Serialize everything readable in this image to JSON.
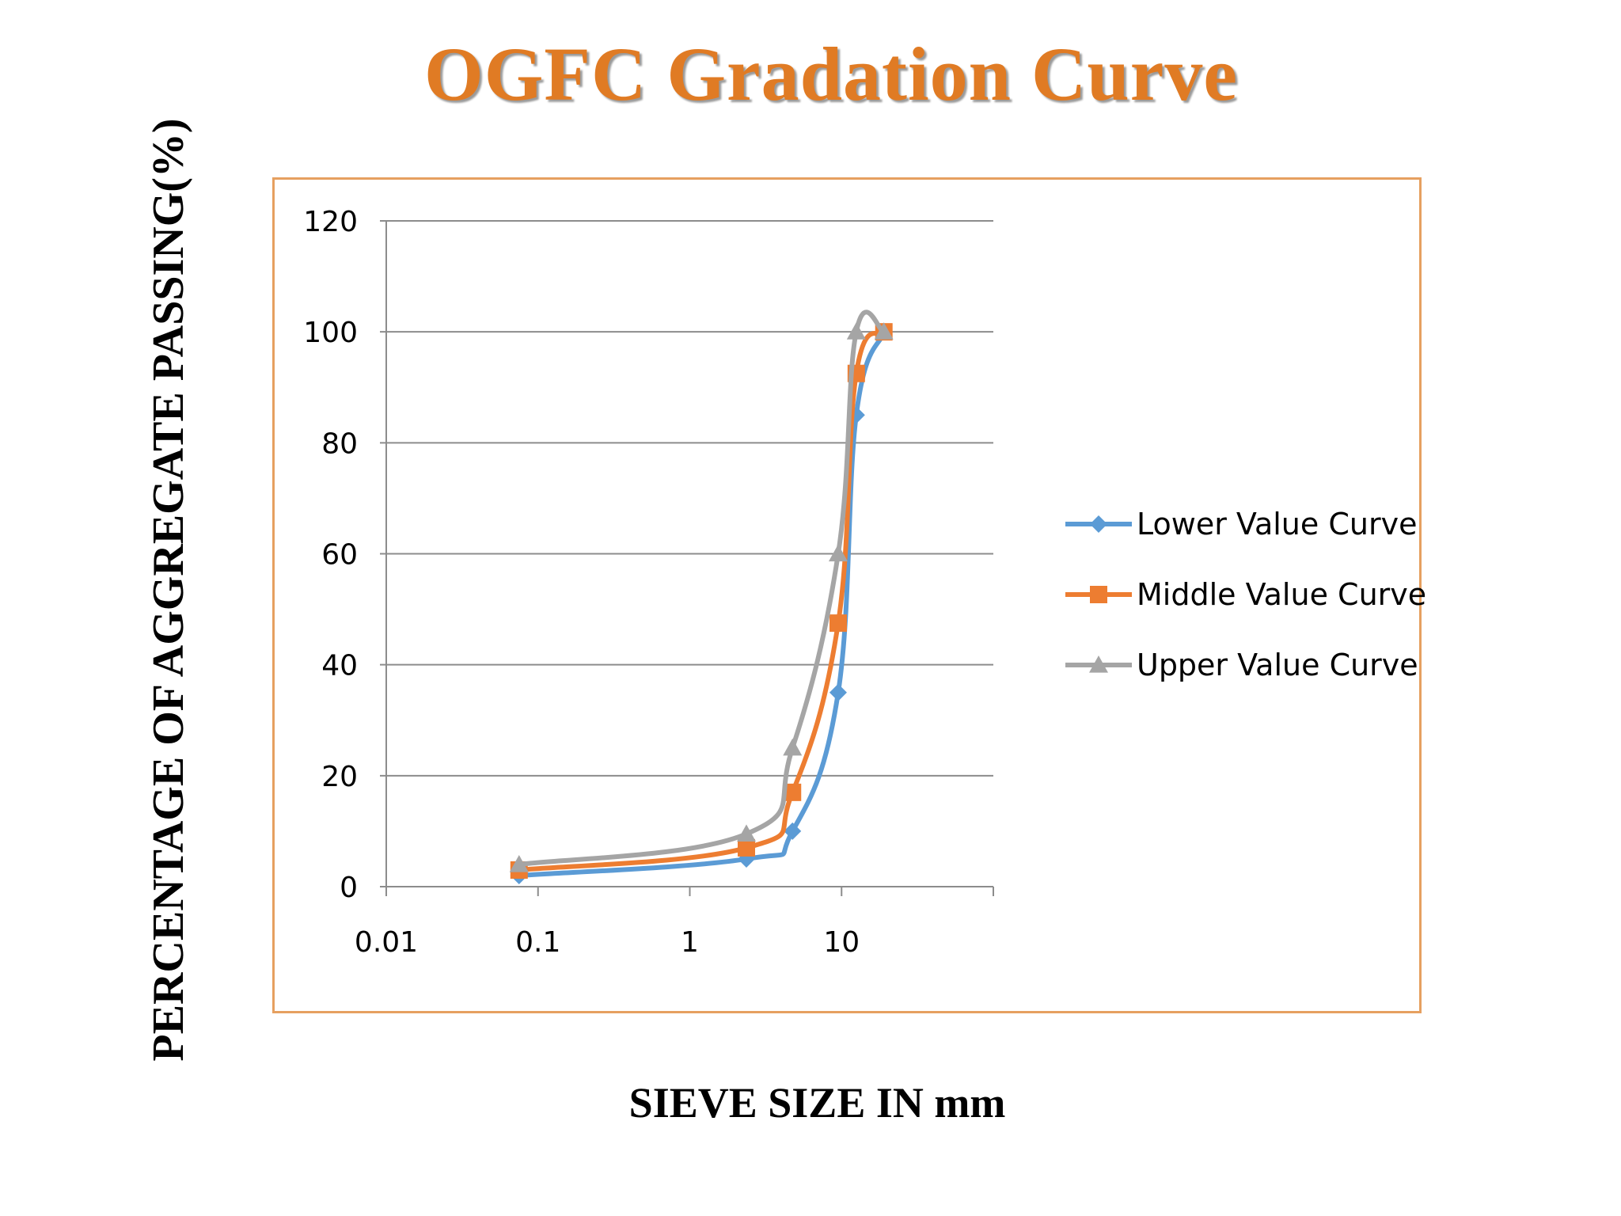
{
  "chart_data": {
    "type": "line",
    "title": "OGFC Gradation Curve",
    "xlabel": "SIEVE SIZE IN mm",
    "ylabel": "PERCENTAGE OF AGGREGATE PASSING(%)",
    "x_scale": "log",
    "xlim": [
      0.01,
      100
    ],
    "ylim": [
      0,
      120
    ],
    "x_ticks": [
      "0.01",
      "0.1",
      "1",
      "10"
    ],
    "y_ticks": [
      "0",
      "20",
      "40",
      "60",
      "80",
      "100",
      "120"
    ],
    "grid": "horizontal",
    "legend_position": "right",
    "series": [
      {
        "name": "Lower Value Curve",
        "color": "#5b9bd5",
        "marker": "diamond",
        "points": [
          [
            0.075,
            2
          ],
          [
            2.36,
            5
          ],
          [
            4.75,
            10
          ],
          [
            9.5,
            35
          ],
          [
            12.5,
            85
          ],
          [
            19,
            100
          ]
        ]
      },
      {
        "name": "Middle Value Curve",
        "color": "#ed7d31",
        "marker": "square",
        "points": [
          [
            0.075,
            3
          ],
          [
            2.36,
            7
          ],
          [
            4.75,
            17
          ],
          [
            9.5,
            47.5
          ],
          [
            12.5,
            92.5
          ],
          [
            19,
            100
          ]
        ]
      },
      {
        "name": "Upper Value Curve",
        "color": "#a5a5a5",
        "marker": "triangle",
        "points": [
          [
            0.075,
            4
          ],
          [
            2.36,
            9.5
          ],
          [
            4.75,
            25
          ],
          [
            9.5,
            60
          ],
          [
            12.5,
            100
          ],
          [
            19,
            100
          ]
        ]
      }
    ]
  }
}
